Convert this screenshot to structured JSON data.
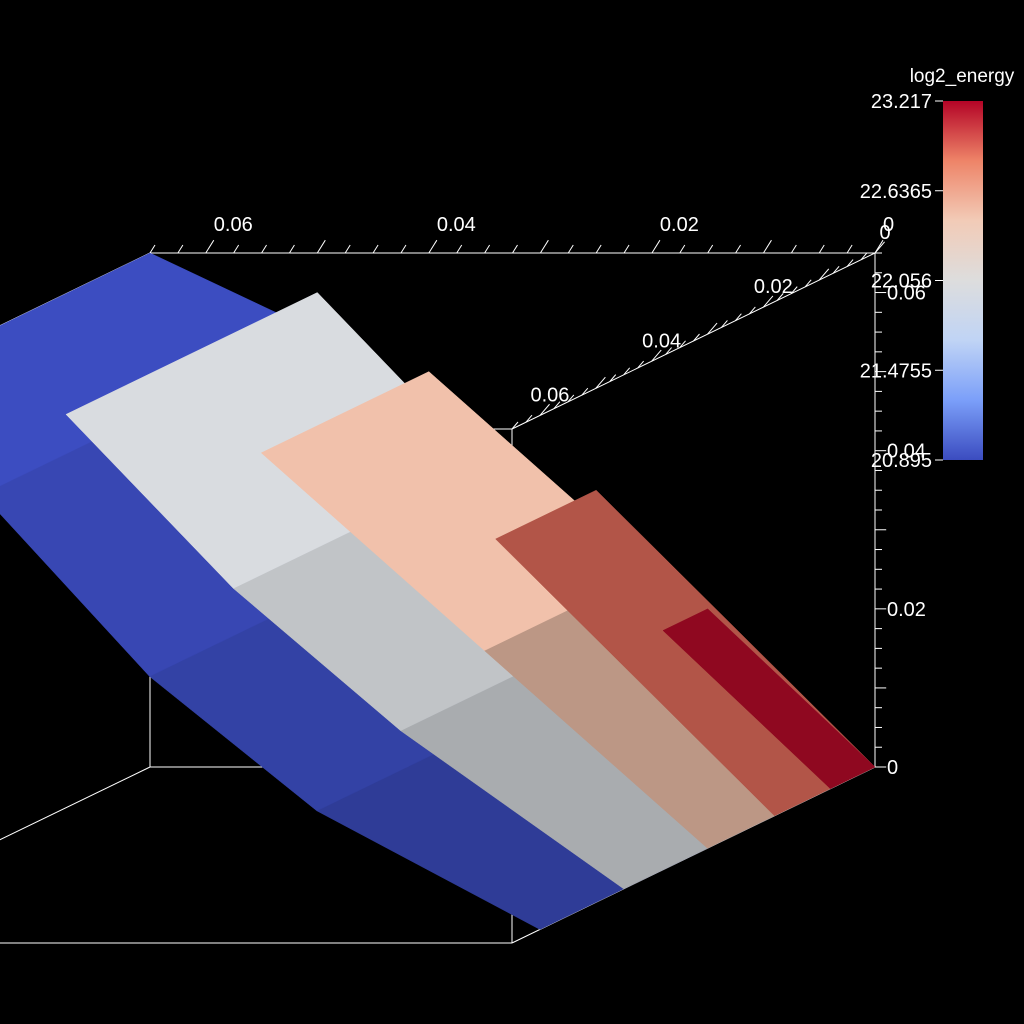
{
  "chart_data": {
    "type": "surface3d",
    "background": "#000000",
    "axis_color": "#ffffff",
    "x_axis": {
      "label": "",
      "ticks": [
        0,
        0.02,
        0.04,
        0.06
      ],
      "tick_labels": [
        "0",
        "0.02",
        "0.04",
        "0.06"
      ],
      "range": [
        0,
        0.065
      ]
    },
    "y_axis": {
      "label": "",
      "ticks": [
        0,
        0.02,
        0.04,
        0.06
      ],
      "tick_labels": [
        "0",
        "0.02",
        "0.04",
        "0.06"
      ],
      "range": [
        0,
        0.065
      ]
    },
    "z_axis": {
      "label": "",
      "ticks": [
        0,
        0.02,
        0.04,
        0.06
      ],
      "tick_labels": [
        "0",
        "0.02",
        "0.04",
        "0.06"
      ],
      "range": [
        0,
        0.065
      ]
    },
    "colorbar": {
      "title": "log2_energy",
      "min": 20.895,
      "max": 23.217,
      "ticks": [
        23.217,
        22.6365,
        22.056,
        21.4755,
        20.895
      ],
      "tick_labels": [
        "23.217",
        "22.6365",
        "22.056",
        "21.4755",
        "20.895"
      ],
      "colormap": "coolwarm",
      "stops": [
        "#3b4cc0",
        "#7b9ff9",
        "#c0d4f5",
        "#dddddd",
        "#f2cbb7",
        "#ee8468",
        "#b40426"
      ]
    },
    "series": [
      {
        "value": 20.9,
        "x": 0.06,
        "profile": [
          [
            0.0,
            0.0
          ],
          [
            0.02,
            0.015
          ],
          [
            0.035,
            0.032
          ],
          [
            0.05,
            0.055
          ],
          [
            0.065,
            0.065
          ]
        ]
      },
      {
        "value": 22.0,
        "x": 0.045,
        "profile": [
          [
            0.0,
            0.0
          ],
          [
            0.02,
            0.02
          ],
          [
            0.035,
            0.038
          ],
          [
            0.05,
            0.06
          ]
        ]
      },
      {
        "value": 22.5,
        "x": 0.03,
        "profile": [
          [
            0.0,
            0.0
          ],
          [
            0.02,
            0.025
          ],
          [
            0.04,
            0.05
          ]
        ]
      },
      {
        "value": 22.9,
        "x": 0.018,
        "profile": [
          [
            0.0,
            0.0
          ],
          [
            0.025,
            0.035
          ]
        ]
      },
      {
        "value": 23.2,
        "x": 0.008,
        "profile": [
          [
            0.0,
            0.0
          ],
          [
            0.015,
            0.02
          ]
        ]
      }
    ]
  }
}
